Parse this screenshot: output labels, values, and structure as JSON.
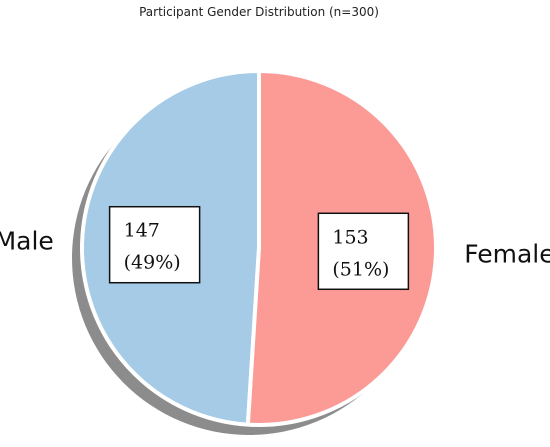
{
  "chart_data": {
    "type": "pie",
    "title": "Participant Gender Distribution (n=300)",
    "categories": [
      "Male",
      "Female"
    ],
    "values": [
      147,
      153
    ],
    "percent_labels": [
      "(49%)",
      "(51%)"
    ],
    "colors": [
      "#a5cbe6",
      "#fc9a95"
    ],
    "shadow": true,
    "legend": "none"
  }
}
